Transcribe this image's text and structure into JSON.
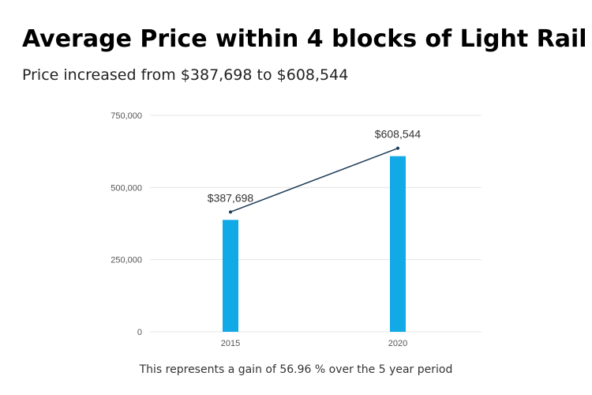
{
  "title": "Average Price within 4 blocks of Light Rail",
  "subtitle": "Price increased from $387,698 to $608,544",
  "caption": "This represents a gain of 56.96 % over the 5 year period",
  "chart_data": {
    "type": "bar",
    "categories": [
      "2015",
      "2020"
    ],
    "values": [
      387698,
      608544
    ],
    "data_labels": [
      "$387,698",
      "$608,544"
    ],
    "ylim": [
      0,
      750000
    ],
    "yticks": [
      0,
      250000,
      500000,
      750000
    ],
    "ytick_labels": [
      "0",
      "250,000",
      "500,000",
      "750,000"
    ],
    "grid": true,
    "trend_line": true,
    "colors": {
      "bar": "#11a9e6",
      "trend_line": "#1b3a57",
      "grid": "#e6e6e6"
    }
  }
}
